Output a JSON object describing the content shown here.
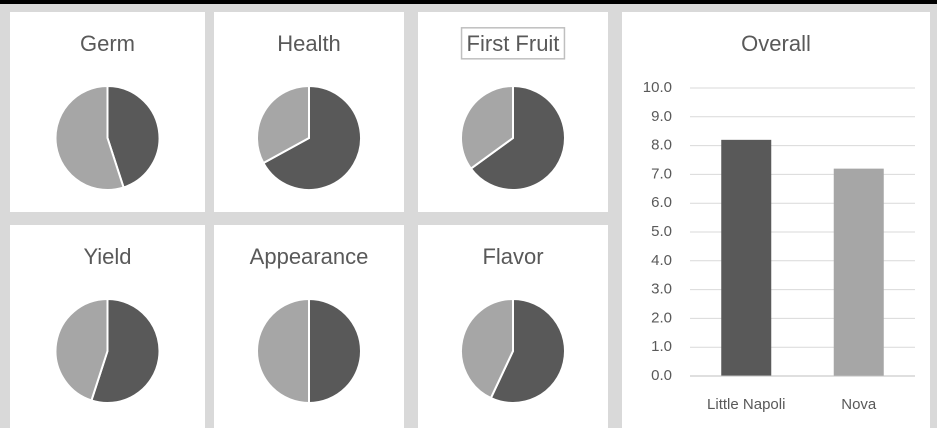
{
  "chart_data": [
    {
      "type": "pie",
      "title": "Germ",
      "values": [
        45,
        55
      ],
      "colors": [
        "#595959",
        "#a6a6a6"
      ]
    },
    {
      "type": "pie",
      "title": "Health",
      "values": [
        67,
        33
      ],
      "colors": [
        "#595959",
        "#a6a6a6"
      ]
    },
    {
      "type": "pie",
      "title": "First Fruit",
      "values": [
        65,
        35
      ],
      "colors": [
        "#595959",
        "#a6a6a6"
      ]
    },
    {
      "type": "pie",
      "title": "Yield",
      "values": [
        55,
        45
      ],
      "colors": [
        "#595959",
        "#a6a6a6"
      ]
    },
    {
      "type": "pie",
      "title": "Appearance",
      "values": [
        50,
        50
      ],
      "colors": [
        "#595959",
        "#a6a6a6"
      ]
    },
    {
      "type": "pie",
      "title": "Flavor",
      "values": [
        57,
        43
      ],
      "colors": [
        "#595959",
        "#a6a6a6"
      ]
    },
    {
      "type": "bar",
      "title": "Overall",
      "categories": [
        "Little Napoli",
        "Nova"
      ],
      "values": [
        8.2,
        7.2
      ],
      "colors": [
        "#595959",
        "#a6a6a6"
      ],
      "ylim": [
        0,
        10
      ],
      "yticks": [
        {
          "value": 0,
          "label": "0.0"
        },
        {
          "value": 1,
          "label": "1.0"
        },
        {
          "value": 2,
          "label": "2.0"
        },
        {
          "value": 3,
          "label": "3.0"
        },
        {
          "value": 4,
          "label": "4.0"
        },
        {
          "value": 5,
          "label": "5.0"
        },
        {
          "value": 6,
          "label": "6.0"
        },
        {
          "value": 7,
          "label": "7.0"
        },
        {
          "value": 8,
          "label": "8.0"
        },
        {
          "value": 9,
          "label": "9.0"
        },
        {
          "value": 10,
          "label": "10.0"
        }
      ],
      "grid": true
    }
  ]
}
